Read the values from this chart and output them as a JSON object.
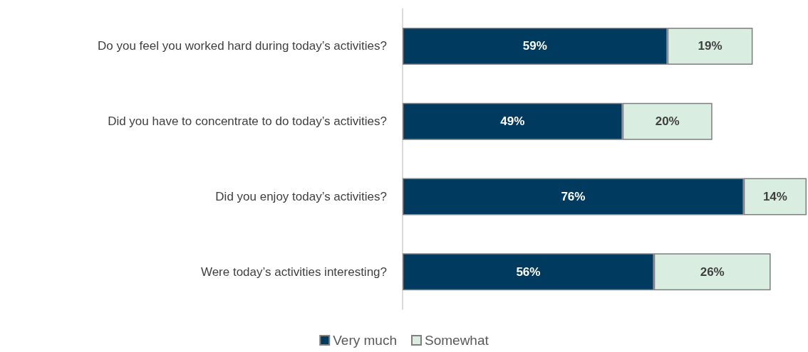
{
  "chart_data": {
    "type": "bar",
    "orientation": "horizontal",
    "stacked": true,
    "legend": "bottom",
    "categories": [
      "Do you feel you worked hard during today’s activities?",
      "Did you have to concentrate to do today’s activities?",
      "Did you enjoy today’s activities?",
      "Were today’s activities interesting?"
    ],
    "series": [
      {
        "name": "Very much",
        "color": "#003a5e",
        "values": [
          59,
          49,
          76,
          56
        ],
        "value_labels": [
          "59%",
          "49%",
          "76%",
          "56%"
        ]
      },
      {
        "name": "Somewhat",
        "color": "#d9ede0",
        "values": [
          19,
          20,
          14,
          26
        ],
        "value_labels": [
          "19%",
          "20%",
          "14%",
          "26%"
        ]
      }
    ]
  }
}
